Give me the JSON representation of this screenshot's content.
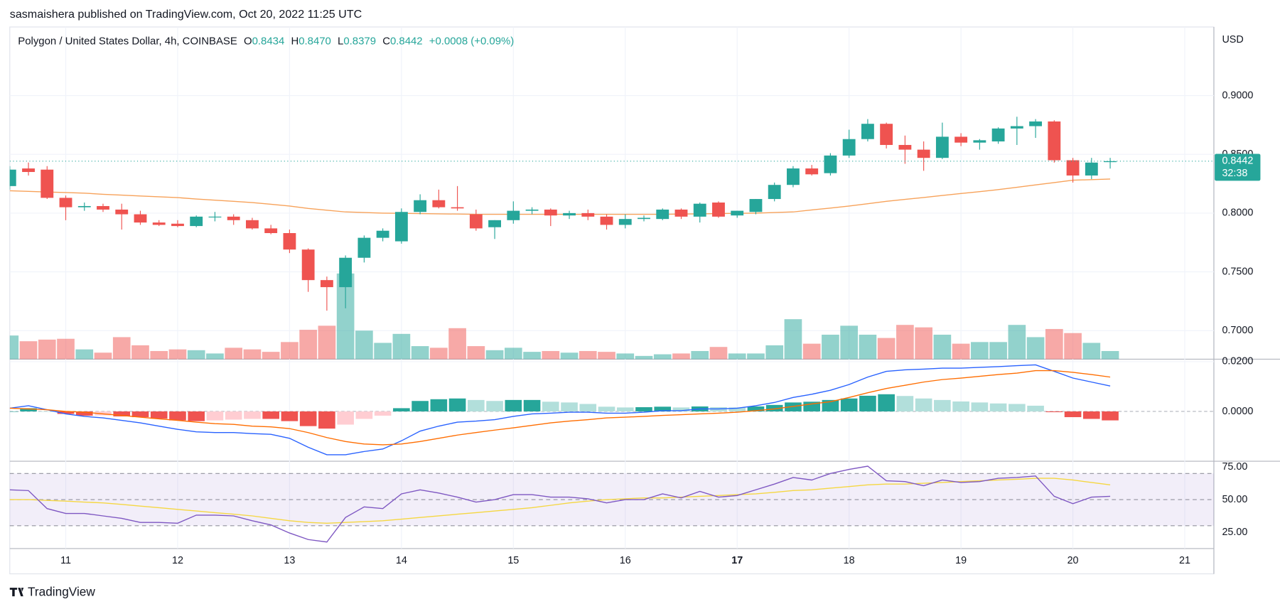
{
  "chart_data": {
    "type": "candlestick",
    "publisher": "sasmaishera published on TradingView.com, Oct 20, 2022 11:25 UTC",
    "title": "Polygon / United States Dollar, 4h, COINBASE",
    "ohlc_labels": [
      "O",
      "H",
      "L",
      "C"
    ],
    "header_values": [
      "0.8434",
      "0.8470",
      "0.8379",
      "0.8442"
    ],
    "change": "+0.0008 (+0.09%)",
    "currency": "USD",
    "countdown": "32:38",
    "brand": "TradingView",
    "up_color": "#26a69a",
    "down_color": "#ef5350",
    "x": [
      10.5,
      10.6667,
      10.8333,
      11,
      11.1667,
      11.3333,
      11.5,
      11.6667,
      11.8333,
      12,
      12.1667,
      12.3333,
      12.5,
      12.6667,
      12.8333,
      13,
      13.1667,
      13.3333,
      13.5,
      13.6667,
      13.8333,
      14,
      14.1667,
      14.3333,
      14.5,
      14.6667,
      14.8333,
      15,
      15.1667,
      15.3333,
      15.5,
      15.6667,
      15.8333,
      16,
      16.1667,
      16.3333,
      16.5,
      16.6667,
      16.8333,
      17,
      17.1667,
      17.3333,
      17.5,
      17.6667,
      17.8333,
      18,
      18.1667,
      18.3333,
      18.5,
      18.6667,
      18.8333,
      19,
      19.1667,
      19.3333,
      19.5,
      19.6667,
      19.8333,
      20,
      20.1667,
      20.3333
    ],
    "open": [
      0.823,
      0.838,
      0.837,
      0.813,
      0.805,
      0.806,
      0.803,
      0.799,
      0.792,
      0.791,
      0.789,
      0.797,
      0.797,
      0.794,
      0.787,
      0.783,
      0.769,
      0.743,
      0.737,
      0.762,
      0.779,
      0.776,
      0.801,
      0.811,
      0.805,
      0.799,
      0.788,
      0.794,
      0.802,
      0.803,
      0.798,
      0.8,
      0.797,
      0.79,
      0.795,
      0.795,
      0.803,
      0.797,
      0.809,
      0.798,
      0.801,
      0.812,
      0.824,
      0.838,
      0.834,
      0.849,
      0.863,
      0.876,
      0.858,
      0.854,
      0.847,
      0.865,
      0.86,
      0.861,
      0.872,
      0.874,
      0.878,
      0.845,
      0.832,
      0.8434
    ],
    "high": [
      0.84,
      0.843,
      0.84,
      0.815,
      0.809,
      0.808,
      0.808,
      0.802,
      0.794,
      0.794,
      0.798,
      0.801,
      0.799,
      0.796,
      0.79,
      0.786,
      0.77,
      0.746,
      0.764,
      0.781,
      0.787,
      0.804,
      0.816,
      0.82,
      0.823,
      0.803,
      0.794,
      0.81,
      0.805,
      0.804,
      0.802,
      0.803,
      0.799,
      0.799,
      0.798,
      0.804,
      0.804,
      0.809,
      0.81,
      0.802,
      0.812,
      0.826,
      0.84,
      0.841,
      0.851,
      0.871,
      0.88,
      0.877,
      0.866,
      0.861,
      0.877,
      0.868,
      0.863,
      0.873,
      0.882,
      0.88,
      0.879,
      0.847,
      0.847,
      0.847
    ],
    "low": [
      0.82,
      0.832,
      0.812,
      0.794,
      0.802,
      0.801,
      0.786,
      0.79,
      0.789,
      0.788,
      0.788,
      0.793,
      0.79,
      0.786,
      0.782,
      0.766,
      0.733,
      0.717,
      0.719,
      0.758,
      0.776,
      0.774,
      0.799,
      0.804,
      0.802,
      0.785,
      0.778,
      0.791,
      0.799,
      0.789,
      0.795,
      0.794,
      0.786,
      0.787,
      0.793,
      0.794,
      0.795,
      0.792,
      0.796,
      0.796,
      0.799,
      0.81,
      0.822,
      0.832,
      0.832,
      0.847,
      0.861,
      0.855,
      0.842,
      0.836,
      0.846,
      0.857,
      0.854,
      0.859,
      0.858,
      0.864,
      0.843,
      0.826,
      0.829,
      0.8379
    ],
    "close": [
      0.837,
      0.835,
      0.813,
      0.805,
      0.806,
      0.803,
      0.799,
      0.792,
      0.79,
      0.789,
      0.797,
      0.797,
      0.794,
      0.787,
      0.783,
      0.769,
      0.743,
      0.737,
      0.762,
      0.779,
      0.785,
      0.801,
      0.811,
      0.805,
      0.804,
      0.787,
      0.794,
      0.802,
      0.803,
      0.798,
      0.8,
      0.797,
      0.79,
      0.795,
      0.796,
      0.803,
      0.797,
      0.808,
      0.797,
      0.802,
      0.812,
      0.824,
      0.838,
      0.833,
      0.849,
      0.863,
      0.876,
      0.858,
      0.854,
      0.847,
      0.865,
      0.86,
      0.862,
      0.872,
      0.874,
      0.878,
      0.845,
      0.832,
      0.843,
      0.8442
    ],
    "volume": [
      29,
      22,
      24,
      25,
      12,
      8,
      27,
      17,
      10,
      12,
      11,
      7,
      14,
      12,
      9,
      21,
      36,
      41,
      105,
      35,
      20,
      31,
      16,
      14,
      38,
      16,
      11,
      14,
      9,
      10,
      8,
      10,
      9,
      7,
      4,
      6,
      7,
      10,
      15,
      7,
      7,
      17,
      49,
      19,
      30,
      41,
      30,
      26,
      42,
      39,
      30,
      19,
      21,
      21,
      42,
      27,
      37,
      32,
      20,
      10
    ],
    "volume_lim": [
      0,
      404
    ],
    "ma": {
      "color": "#f7a25a",
      "values": [
        0.819,
        0.8185,
        0.818,
        0.8175,
        0.817,
        0.816,
        0.8153,
        0.8146,
        0.8139,
        0.8132,
        0.812,
        0.811,
        0.81,
        0.809,
        0.8075,
        0.806,
        0.804,
        0.8025,
        0.801,
        0.8005,
        0.8,
        0.7998,
        0.7996,
        0.7994,
        0.7992,
        0.799,
        0.799,
        0.799,
        0.799,
        0.799,
        0.799,
        0.799,
        0.799,
        0.799,
        0.799,
        0.799,
        0.7992,
        0.7994,
        0.7996,
        0.7998,
        0.8,
        0.8005,
        0.801,
        0.8027,
        0.8043,
        0.806,
        0.808,
        0.81,
        0.8117,
        0.8133,
        0.815,
        0.8167,
        0.8183,
        0.82,
        0.822,
        0.824,
        0.826,
        0.828,
        0.8285,
        0.829
      ]
    },
    "xlim": [
      10.5,
      21.26
    ],
    "xticks": [
      11,
      12,
      13,
      14,
      15,
      16,
      17,
      18,
      19,
      20,
      21
    ],
    "bold_xtick": 17,
    "ylim": [
      0.6757,
      0.9563
    ],
    "yticks": [
      {
        "value": 0.7,
        "label": "0.7000"
      },
      {
        "value": 0.75,
        "label": "0.7500"
      },
      {
        "value": 0.8,
        "label": "0.8000"
      },
      {
        "value": 0.85,
        "label": "0.8500"
      },
      {
        "value": 0.9,
        "label": "0.9000"
      }
    ],
    "grid": true,
    "macd": {
      "ylim": [
        -0.02,
        0.02
      ],
      "yticks": [
        {
          "value": 0,
          "label": "0.0000"
        },
        {
          "value": 0.02,
          "label": "0.0200"
        }
      ],
      "macd_color": "#2962ff",
      "signal_color": "#ff6d00",
      "macd": [
        0.0013,
        0.0023,
        0.0007,
        -0.001,
        -0.002,
        -0.0026,
        -0.0036,
        -0.0046,
        -0.0059,
        -0.0072,
        -0.0082,
        -0.0085,
        -0.0085,
        -0.0089,
        -0.0092,
        -0.0108,
        -0.0144,
        -0.0174,
        -0.0174,
        -0.0161,
        -0.0151,
        -0.0118,
        -0.0079,
        -0.0059,
        -0.0043,
        -0.0039,
        -0.0033,
        -0.002,
        -0.001,
        -0.0007,
        -0.0003,
        -0.0003,
        -0.0007,
        -0.0007,
        -0.0003,
        0.0003,
        0.0003,
        0.001,
        0.001,
        0.0013,
        0.0023,
        0.0036,
        0.0056,
        0.0069,
        0.0085,
        0.0108,
        0.0138,
        0.0161,
        0.0167,
        0.017,
        0.0174,
        0.0174,
        0.0177,
        0.018,
        0.0184,
        0.0187,
        0.0161,
        0.0134,
        0.0118,
        0.0102
      ],
      "signal": [
        0.0013,
        0.001,
        0.0007,
        0,
        -0.0003,
        -0.001,
        -0.0016,
        -0.0023,
        -0.003,
        -0.0036,
        -0.0043,
        -0.0049,
        -0.0052,
        -0.0059,
        -0.0062,
        -0.0069,
        -0.0085,
        -0.0105,
        -0.0121,
        -0.0131,
        -0.0134,
        -0.0131,
        -0.0121,
        -0.0108,
        -0.0095,
        -0.0085,
        -0.0075,
        -0.0066,
        -0.0056,
        -0.0046,
        -0.0039,
        -0.0033,
        -0.0026,
        -0.0023,
        -0.002,
        -0.0016,
        -0.0013,
        -0.001,
        -0.0007,
        -0.0003,
        0.0003,
        0.001,
        0.002,
        0.003,
        0.0039,
        0.0056,
        0.0075,
        0.0092,
        0.0105,
        0.0118,
        0.0128,
        0.0134,
        0.0141,
        0.0148,
        0.0154,
        0.0164,
        0.0164,
        0.0157,
        0.0148,
        0.0138
      ],
      "histogram": [
        0,
        0.0013,
        0,
        -0.001,
        -0.0017,
        -0.0016,
        -0.002,
        -0.0023,
        -0.0029,
        -0.0036,
        -0.0039,
        -0.0036,
        -0.0033,
        -0.003,
        -0.003,
        -0.0039,
        -0.0059,
        -0.0069,
        -0.0053,
        -0.003,
        -0.0017,
        0.0013,
        0.0042,
        0.0049,
        0.0052,
        0.0046,
        0.0042,
        0.0046,
        0.0046,
        0.0039,
        0.0036,
        0.003,
        0.0019,
        0.0016,
        0.0017,
        0.0019,
        0.0016,
        0.002,
        0.0017,
        0.0016,
        0.002,
        0.0026,
        0.0036,
        0.0039,
        0.0046,
        0.0052,
        0.0063,
        0.0069,
        0.0062,
        0.0052,
        0.0046,
        0.004,
        0.0036,
        0.0032,
        0.003,
        0.0023,
        -0.0003,
        -0.0023,
        -0.003,
        -0.0036
      ]
    },
    "rsi": {
      "ylim": [
        12.5,
        79.4
      ],
      "yticks": [
        {
          "value": 25,
          "label": "25.00"
        },
        {
          "value": 50,
          "label": "50.00"
        },
        {
          "value": 75,
          "label": "75.00"
        }
      ],
      "bands": [
        30,
        50,
        70
      ],
      "color": "#7e57c2",
      "ma_color": "#f5d742",
      "values": [
        57.5,
        56.9,
        43.1,
        39.4,
        39.4,
        37.5,
        35.6,
        32.5,
        32.5,
        31.9,
        38.1,
        38.1,
        37.5,
        33.8,
        30.6,
        24.4,
        19.4,
        17.5,
        36.3,
        44.4,
        43.1,
        54.4,
        57.5,
        55,
        51.9,
        48.1,
        50,
        53.8,
        53.8,
        51.9,
        51.9,
        50.6,
        47.5,
        50,
        50,
        54.4,
        51.3,
        56.3,
        51.9,
        53.1,
        57.5,
        61.9,
        66.9,
        65,
        70,
        73.1,
        75.6,
        64.4,
        63.8,
        60.6,
        65,
        63.1,
        63.8,
        66.3,
        66.9,
        68.1,
        52.5,
        46.9,
        51.9,
        52.5
      ],
      "ma": [
        50,
        50,
        49.4,
        48.8,
        48.1,
        47.5,
        46.3,
        45,
        43.8,
        42.5,
        41.3,
        40,
        38.8,
        37.5,
        35.6,
        33.8,
        32.5,
        31.9,
        32.5,
        33.1,
        33.8,
        35,
        36.3,
        37.5,
        38.8,
        40,
        41.3,
        42.5,
        43.8,
        45.6,
        47.5,
        48.8,
        50,
        50.6,
        51.3,
        51.3,
        51.9,
        52.5,
        53.1,
        53.8,
        54.4,
        55.6,
        56.9,
        57.5,
        58.8,
        60,
        61.3,
        61.9,
        61.9,
        62.5,
        63.1,
        63.8,
        64.4,
        65,
        65.6,
        66.3,
        66.3,
        65,
        63.1,
        61.3
      ]
    }
  }
}
